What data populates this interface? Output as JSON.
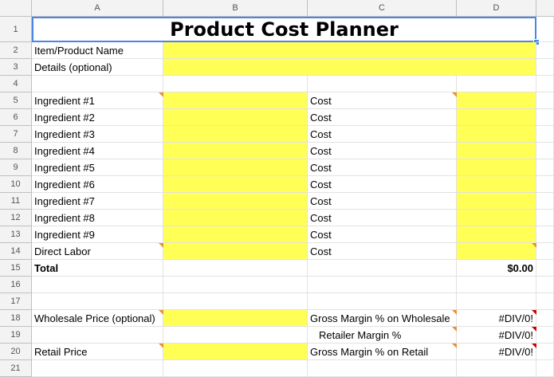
{
  "columns": [
    "A",
    "B",
    "C",
    "D"
  ],
  "rows": [
    "1",
    "2",
    "3",
    "4",
    "5",
    "6",
    "7",
    "8",
    "9",
    "10",
    "11",
    "12",
    "13",
    "14",
    "15",
    "16",
    "17",
    "18",
    "19",
    "20",
    "21"
  ],
  "title": "Product Cost Planner",
  "labels": {
    "item_name": "Item/Product Name",
    "details": "Details (optional)",
    "ingredient1": "Ingredient #1",
    "ingredient2": "Ingredient #2",
    "ingredient3": "Ingredient #3",
    "ingredient4": "Ingredient #4",
    "ingredient5": "Ingredient #5",
    "ingredient6": "Ingredient #6",
    "ingredient7": "Ingredient #7",
    "ingredient8": "Ingredient #8",
    "ingredient9": "Ingredient #9",
    "direct_labor": "Direct Labor",
    "cost": "Cost",
    "total": "Total",
    "total_value": "$0.00",
    "wholesale_price": "Wholesale Price (optional)",
    "gross_margin_wholesale": "Gross Margin % on Wholesale",
    "retailer_margin": "Retailer Margin %",
    "retail_price": "Retail Price",
    "gross_margin_retail": "Gross Margin % on Retail",
    "div_error": "#DIV/0!"
  },
  "colors": {
    "input_fill": "#ffff55",
    "selection": "#4a86e8",
    "comment_marker": "#e69138",
    "error_marker": "#cc0000"
  }
}
